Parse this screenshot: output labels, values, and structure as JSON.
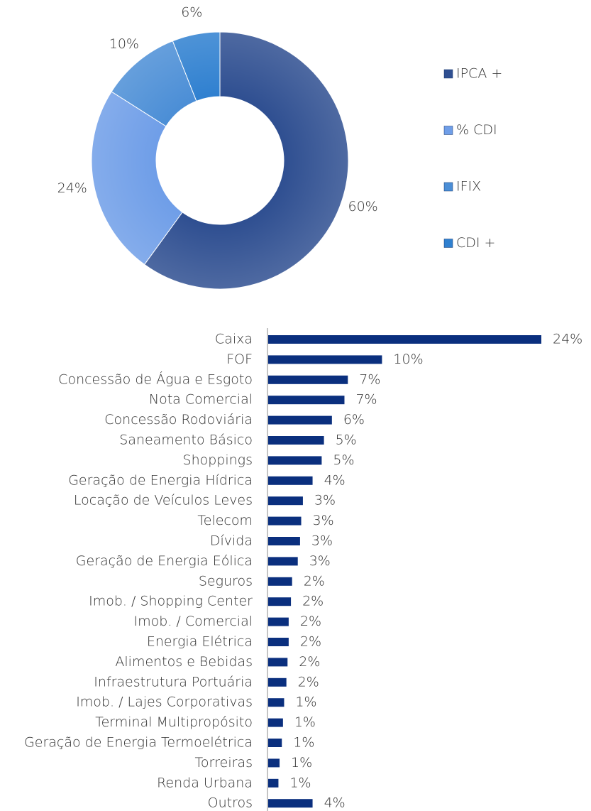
{
  "chart_data": [
    {
      "type": "donut",
      "categories": [
        "IPCA +",
        "% CDI",
        "IFIX",
        "CDI +"
      ],
      "values": [
        60,
        24,
        10,
        6
      ],
      "value_labels": [
        "60%",
        "24%",
        "10%",
        "6%"
      ],
      "colors": [
        "#2f4f91",
        "#6f9ee8",
        "#4b8ed6",
        "#2f80d0"
      ],
      "legend": "right"
    },
    {
      "type": "hbar",
      "categories": [
        "Caixa",
        "FOF",
        "Concessão de Água e Esgoto",
        "Nota Comercial",
        "Concessão Rodoviária",
        "Saneamento Básico",
        "Shoppings",
        "Geração de Energia Hídrica",
        "Locação de Veículos Leves",
        "Telecom",
        "Dívida",
        "Geração de Energia Eólica",
        "Seguros",
        "Imob. / Shopping Center",
        "Imob. / Comercial",
        "Energia Elétrica",
        "Alimentos e Bebidas",
        "Infraestrutura Portuária",
        "Imob. / Lajes Corporativas",
        "Terminal Multipropósito",
        "Geração de Energia Termoelétrica",
        "Torreiras",
        "Renda Urbana",
        "Outros"
      ],
      "values": [
        24,
        10,
        7,
        6.7,
        5.6,
        4.9,
        4.7,
        3.9,
        3.05,
        2.9,
        2.8,
        2.6,
        2.1,
        2,
        1.8,
        1.8,
        1.7,
        1.6,
        1.4,
        1.3,
        1.2,
        1,
        0.9,
        3.9
      ],
      "value_labels": [
        "24%",
        "10%",
        "7%",
        "7%",
        "6%",
        "5%",
        "5%",
        "4%",
        "3%",
        "3%",
        "3%",
        "3%",
        "2%",
        "2%",
        "2%",
        "2%",
        "2%",
        "2%",
        "1%",
        "1%",
        "1%",
        "1%",
        "1%",
        "4%"
      ],
      "color": "#0a2f7e"
    }
  ]
}
